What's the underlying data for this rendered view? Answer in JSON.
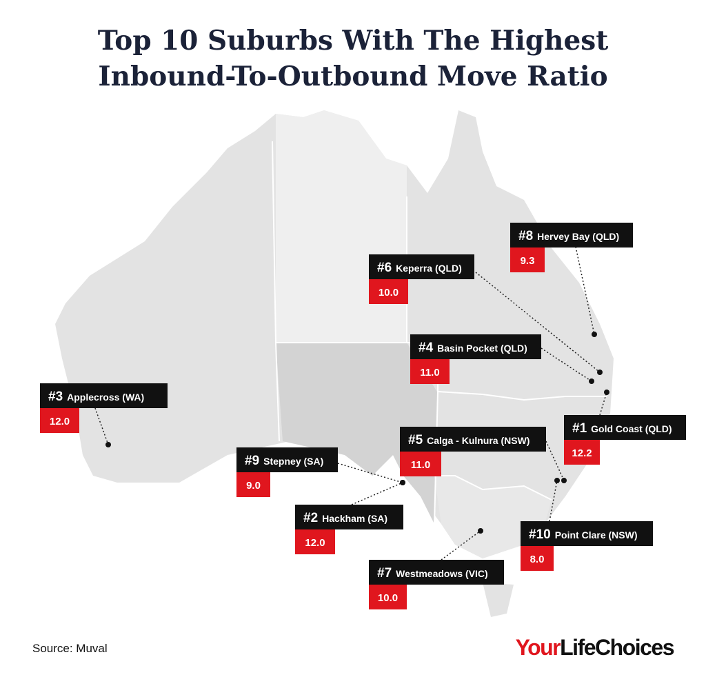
{
  "title": {
    "lines": [
      "Top 10 Suburbs With The Highest",
      "Inbound-To-Outbound Move Ratio"
    ]
  },
  "labels": [
    {
      "rank": "#1",
      "name": "Gold Coast (QLD)",
      "value": "12.2"
    },
    {
      "rank": "#2",
      "name": "Hackham (SA)",
      "value": "12.0"
    },
    {
      "rank": "#3",
      "name": "Applecross (WA)",
      "value": "12.0"
    },
    {
      "rank": "#4",
      "name": "Basin Pocket (QLD)",
      "value": "11.0"
    },
    {
      "rank": "#5",
      "name": "Calga - Kulnura (NSW)",
      "value": "11.0"
    },
    {
      "rank": "#6",
      "name": "Keperra (QLD)",
      "value": "10.0"
    },
    {
      "rank": "#7",
      "name": "Westmeadows (VIC)",
      "value": "10.0"
    },
    {
      "rank": "#8",
      "name": "Hervey Bay (QLD)",
      "value": "9.3"
    },
    {
      "rank": "#9",
      "name": "Stepney (SA)",
      "value": "9.0"
    },
    {
      "rank": "#10",
      "name": "Point Clare (NSW)",
      "value": "8.0"
    }
  ],
  "source": "Source: Muval",
  "brand": {
    "accent": "Your",
    "rest": "LifeChoices"
  }
}
